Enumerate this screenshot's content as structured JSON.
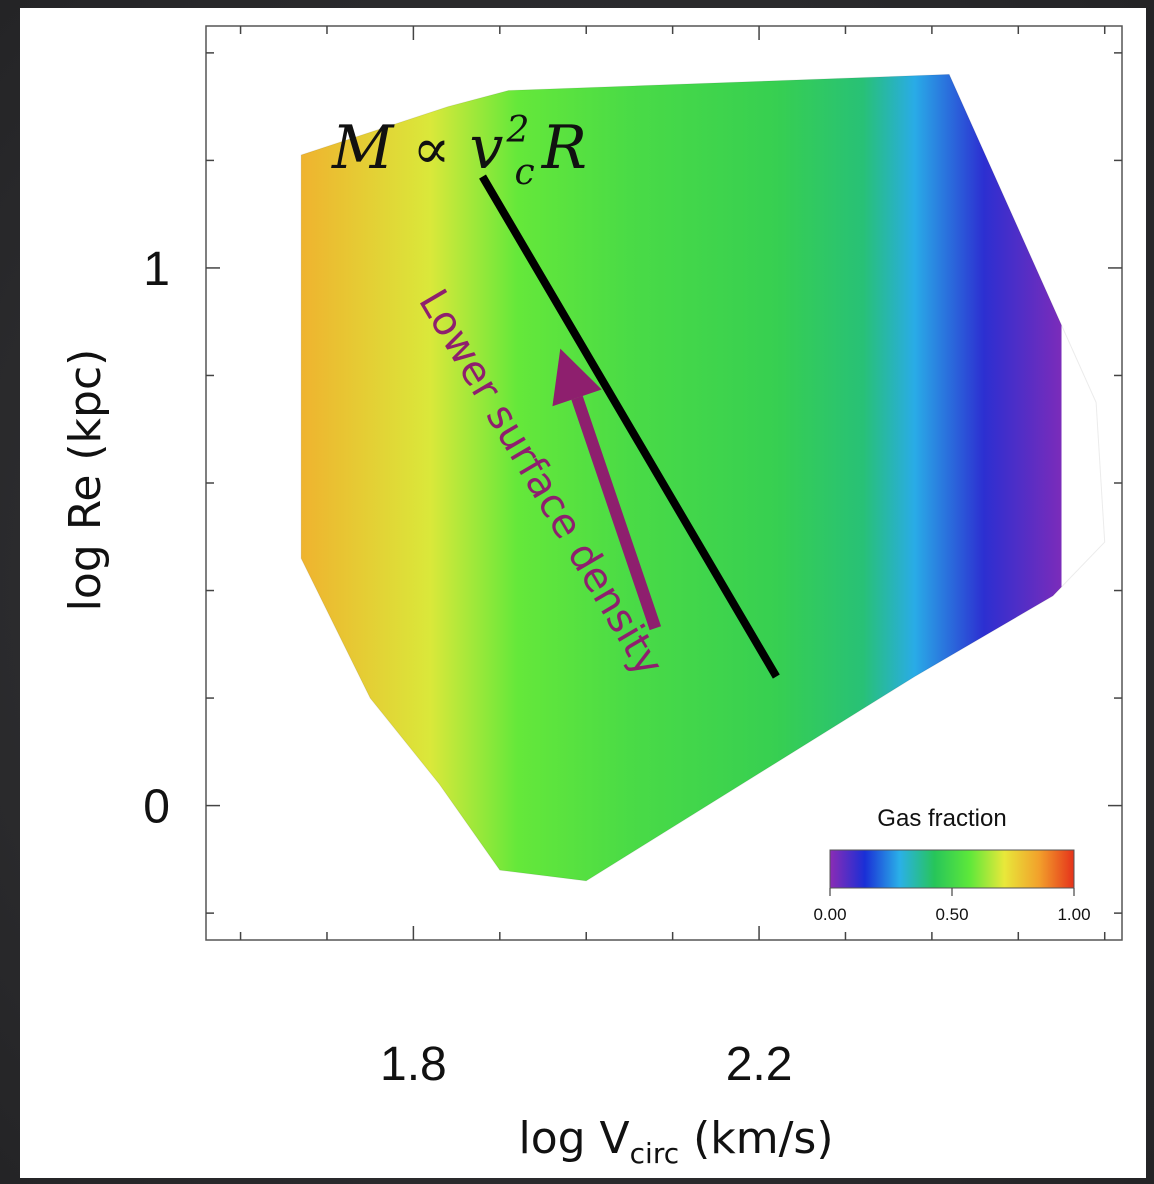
{
  "chart_data": {
    "type": "heatmap",
    "xlabel_main": "log V",
    "xlabel_sub": "circ",
    "xlabel_unit": " (km/s)",
    "ylabel": "log Re (kpc)",
    "x_ticks": [
      {
        "value": 1.8,
        "label": "1.8"
      },
      {
        "value": 2.2,
        "label": "2.2"
      }
    ],
    "y_ticks": [
      {
        "value": 1,
        "label": "1"
      },
      {
        "value": 0,
        "label": "0"
      }
    ],
    "xlim": [
      1.56,
      2.62
    ],
    "ylim": [
      -0.25,
      1.45
    ],
    "z_label": "Gas fraction",
    "z_range": [
      0.0,
      1.0
    ],
    "colorbar_ticks": [
      "0.00",
      "0.50",
      "1.00"
    ],
    "colorbar_colors": [
      "#8b2cb5",
      "#1a2fd6",
      "#2ab0e8",
      "#27c55a",
      "#5de83a",
      "#e8e83a",
      "#f2a02b",
      "#e5321b"
    ],
    "equation": {
      "M": "M",
      "prop": "∝",
      "v": "v",
      "sup": "2",
      "sub": "c",
      "R": "R"
    },
    "annotation": {
      "text": "Lower surface density",
      "color": "#8e1f6e"
    },
    "slope_line": {
      "start": [
        1.88,
        1.17
      ],
      "end": [
        2.22,
        0.24
      ],
      "color": "#000000"
    },
    "arrow": {
      "from": [
        2.08,
        0.33
      ],
      "to": [
        1.97,
        0.85
      ]
    },
    "region_outline": [
      [
        1.67,
        1.21
      ],
      [
        1.84,
        1.3
      ],
      [
        1.91,
        1.33
      ],
      [
        2.42,
        1.36
      ],
      [
        2.59,
        0.75
      ],
      [
        2.6,
        0.49
      ],
      [
        2.54,
        0.39
      ],
      [
        2.38,
        0.24
      ],
      [
        2.0,
        -0.14
      ],
      [
        1.9,
        -0.12
      ],
      [
        1.83,
        0.04
      ],
      [
        1.75,
        0.2
      ],
      [
        1.67,
        0.46
      ]
    ],
    "gas_fraction_zones": [
      {
        "x": 1.67,
        "value": 0.82
      },
      {
        "x": 1.82,
        "value": 0.7
      },
      {
        "x": 1.92,
        "value": 0.58
      },
      {
        "x": 2.05,
        "value": 0.52
      },
      {
        "x": 2.22,
        "value": 0.47
      },
      {
        "x": 2.32,
        "value": 0.4
      },
      {
        "x": 2.38,
        "value": 0.28
      },
      {
        "x": 2.46,
        "value": 0.12
      },
      {
        "x": 2.55,
        "value": 0.02
      }
    ]
  }
}
